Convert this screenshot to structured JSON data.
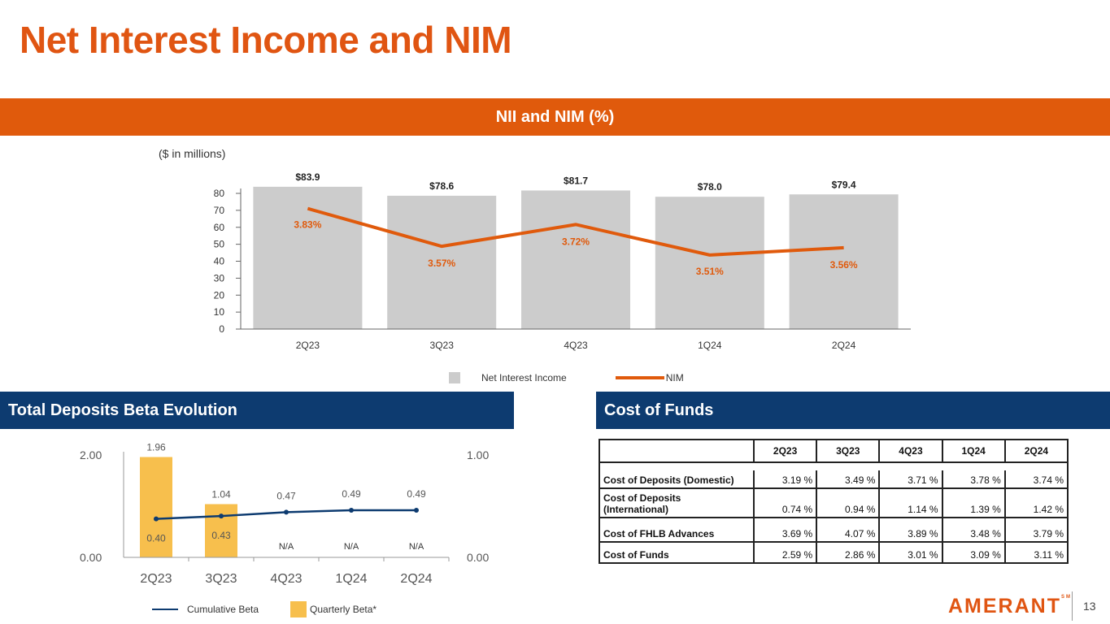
{
  "title": "Net Interest Income and NIM",
  "colors": {
    "orange": "#e05a0c",
    "navy": "#0d3b70",
    "bar_gray": "#cccccc",
    "beta_gold": "#f7bf4d"
  },
  "sections": {
    "nii_header": "NII and NIM (%)",
    "beta_header": "Total Deposits Beta Evolution",
    "cof_header": "Cost of Funds"
  },
  "units_note": "($ in millions)",
  "chart_data": [
    {
      "type": "bar",
      "name": "NII and NIM",
      "categories": [
        "2Q23",
        "3Q23",
        "4Q23",
        "1Q24",
        "2Q24"
      ],
      "series": [
        {
          "name": "Net Interest Income",
          "type": "bar",
          "values": [
            83.9,
            78.6,
            81.7,
            78.0,
            79.4
          ],
          "labels": [
            "$83.9",
            "$78.6",
            "$81.7",
            "$78.0",
            "$79.4"
          ]
        },
        {
          "name": "NIM",
          "type": "line",
          "values": [
            3.83,
            3.57,
            3.72,
            3.51,
            3.56
          ],
          "labels": [
            "3.83%",
            "3.57%",
            "3.72%",
            "3.51%",
            "3.56%"
          ]
        }
      ],
      "ylim": [
        0,
        80
      ],
      "yticks": [
        "0",
        "10",
        "20",
        "30",
        "40",
        "50",
        "60",
        "70",
        "80"
      ],
      "legend": [
        "Net Interest Income",
        "NIM"
      ]
    },
    {
      "type": "bar",
      "name": "Total Deposits Beta Evolution",
      "categories": [
        "2Q23",
        "3Q23",
        "4Q23",
        "1Q24",
        "2Q24"
      ],
      "series": [
        {
          "name": "Quarterly Beta*",
          "type": "bar",
          "values": [
            1.96,
            1.04,
            null,
            null,
            null
          ],
          "labels": [
            "1.96",
            "1.04",
            "N/A",
            "N/A",
            "N/A"
          ]
        },
        {
          "name": "Cumulative Beta",
          "type": "line",
          "values": [
            0.4,
            0.43,
            0.47,
            0.49,
            0.49
          ],
          "labels": [
            "0.40",
            "0.43",
            "0.47",
            "0.49",
            "0.49"
          ]
        }
      ],
      "left_axis": {
        "range": [
          0,
          2
        ],
        "ticks": [
          "0.00",
          "2.00"
        ]
      },
      "right_axis": {
        "range": [
          0,
          1
        ],
        "ticks": [
          "0.00",
          "1.00"
        ]
      },
      "legend": [
        "Cumulative Beta",
        "Quarterly Beta*"
      ]
    },
    {
      "type": "table",
      "name": "Cost of Funds",
      "columns": [
        "2Q23",
        "3Q23",
        "4Q23",
        "1Q24",
        "2Q24"
      ],
      "rows": [
        {
          "label": "Cost of Deposits (Domestic)",
          "values": [
            "3.19 %",
            "3.49 %",
            "3.71 %",
            "3.78 %",
            "3.74 %"
          ]
        },
        {
          "label": "Cost of Deposits (International)",
          "values": [
            "0.74 %",
            "0.94 %",
            "1.14 %",
            "1.39 %",
            "1.42 %"
          ]
        },
        {
          "label": "Cost of FHLB Advances",
          "values": [
            "3.69 %",
            "4.07 %",
            "3.89 %",
            "3.48 %",
            "3.79 %"
          ]
        },
        {
          "label": "Cost of Funds",
          "values": [
            "2.59 %",
            "2.86 %",
            "3.01 %",
            "3.09 %",
            "3.11 %"
          ]
        }
      ]
    }
  ],
  "legends": {
    "nii": "Net Interest Income",
    "nim": "NIM",
    "cum_beta": "Cumulative Beta",
    "qtr_beta": "Quarterly Beta*"
  },
  "cof_table": {
    "columns": [
      "2Q23",
      "3Q23",
      "4Q23",
      "1Q24",
      "2Q24"
    ],
    "rows": [
      {
        "label_line1": "Cost of Deposits (Domestic)",
        "label_line2": "",
        "values": [
          "3.19 %",
          "3.49 %",
          "3.71 %",
          "3.78 %",
          "3.74 %"
        ]
      },
      {
        "label_line1": "Cost of Deposits",
        "label_line2": "(International)",
        "values": [
          "0.74 %",
          "0.94 %",
          "1.14 %",
          "1.39 %",
          "1.42 %"
        ]
      },
      {
        "label_line1": "Cost of FHLB Advances",
        "label_line2": "",
        "values": [
          "3.69 %",
          "4.07 %",
          "3.89 %",
          "3.48 %",
          "3.79 %"
        ]
      },
      {
        "label_line1": "Cost of Funds",
        "label_line2": "",
        "values": [
          "2.59 %",
          "2.86 %",
          "3.01 %",
          "3.09 %",
          "3.11 %"
        ]
      }
    ]
  },
  "logo": {
    "text": "AMERANT",
    "tm": "SM"
  },
  "page_number": "13"
}
